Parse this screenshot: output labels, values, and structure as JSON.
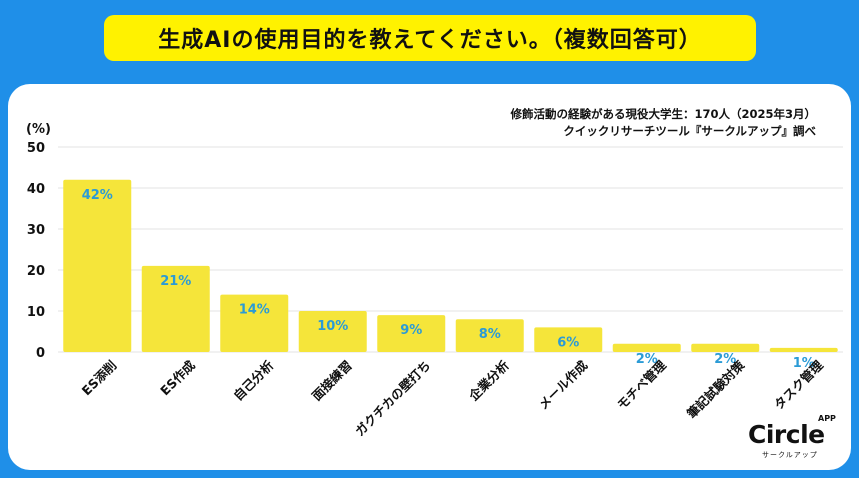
{
  "header": {
    "title": "生成AIの使用目的を教えてください。（複数回答可）"
  },
  "source": {
    "line1": "修飾活動の経験がある現役大学生：170人（2025年3月）",
    "line2": "クイックリサーチツール『サークルアップ』調べ"
  },
  "logo": {
    "main": "Circle",
    "app": "APP",
    "sub": "サークルアップ"
  },
  "colors": {
    "background": "#1f8fe8",
    "title_bg": "#fff200",
    "bar": "#f5e53a",
    "value_label": "#2b9bd6",
    "grid": "#e3e3e3"
  },
  "chart_data": {
    "type": "bar",
    "title": "生成AIの使用目的を教えてください。（複数回答可）",
    "unit_label": "(%)",
    "categories": [
      "ES添削",
      "ES作成",
      "自己分析",
      "面接練習",
      "ガクチカの壁打ち",
      "企業分析",
      "メール作成",
      "モチベ管理",
      "筆記試験対策",
      "タスク管理"
    ],
    "values": [
      42,
      21,
      14,
      10,
      9,
      8,
      6,
      2,
      2,
      1
    ],
    "value_labels": [
      "42%",
      "21%",
      "14%",
      "10%",
      "9%",
      "8%",
      "6%",
      "2%",
      "2%",
      "1%"
    ],
    "ylim": [
      0,
      50
    ],
    "yticks": [
      0,
      10,
      20,
      30,
      40,
      50
    ],
    "grid": true,
    "legend": "none"
  }
}
